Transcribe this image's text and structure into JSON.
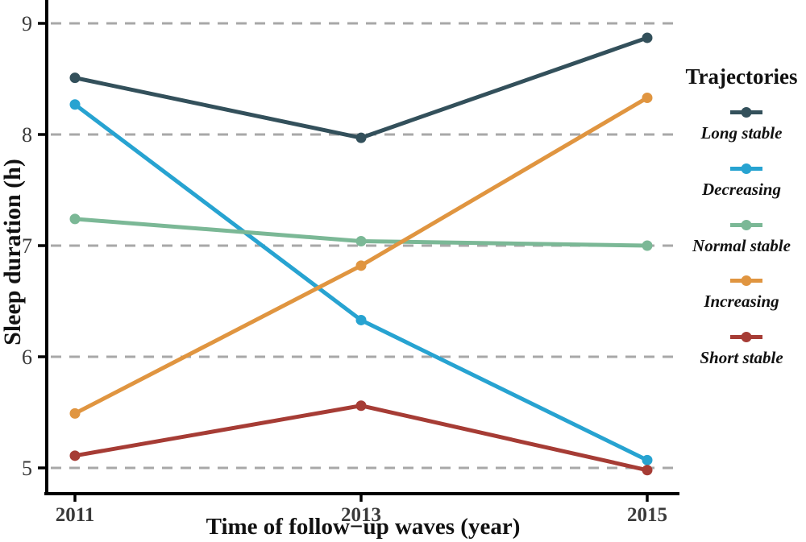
{
  "chart_data": {
    "type": "line",
    "title": "",
    "xlabel": "Time of follow−up waves (year)",
    "ylabel": "Sleep duration (h)",
    "x": [
      2011,
      2013,
      2015
    ],
    "x_tick_labels": [
      "2011",
      "2013",
      "2015"
    ],
    "y_ticks": [
      9,
      8,
      7,
      6,
      5
    ],
    "y_tick_labels": [
      "9",
      "8",
      "7",
      "6",
      "5"
    ],
    "ylim": [
      4.75,
      9.2
    ],
    "grid": "horizontal-dashed",
    "legend_title": "Trajectories",
    "legend_position": "right",
    "series": [
      {
        "name": "Long stable",
        "color": "#33505B",
        "values": [
          8.51,
          7.97,
          8.87
        ]
      },
      {
        "name": "Decreasing",
        "color": "#27A3D1",
        "values": [
          8.27,
          6.33,
          5.07
        ]
      },
      {
        "name": "Normal stable",
        "color": "#7BB896",
        "values": [
          7.24,
          7.04,
          7.0
        ]
      },
      {
        "name": "Increasing",
        "color": "#E09540",
        "values": [
          5.49,
          6.82,
          8.33
        ]
      },
      {
        "name": "Short stable",
        "color": "#A63C35",
        "values": [
          5.11,
          5.56,
          4.98
        ]
      }
    ],
    "colors": {
      "grid": "#A8A8A8",
      "axis": "#000000",
      "tick_label": "#3A3A3A",
      "background": "#FFFFFF"
    }
  }
}
